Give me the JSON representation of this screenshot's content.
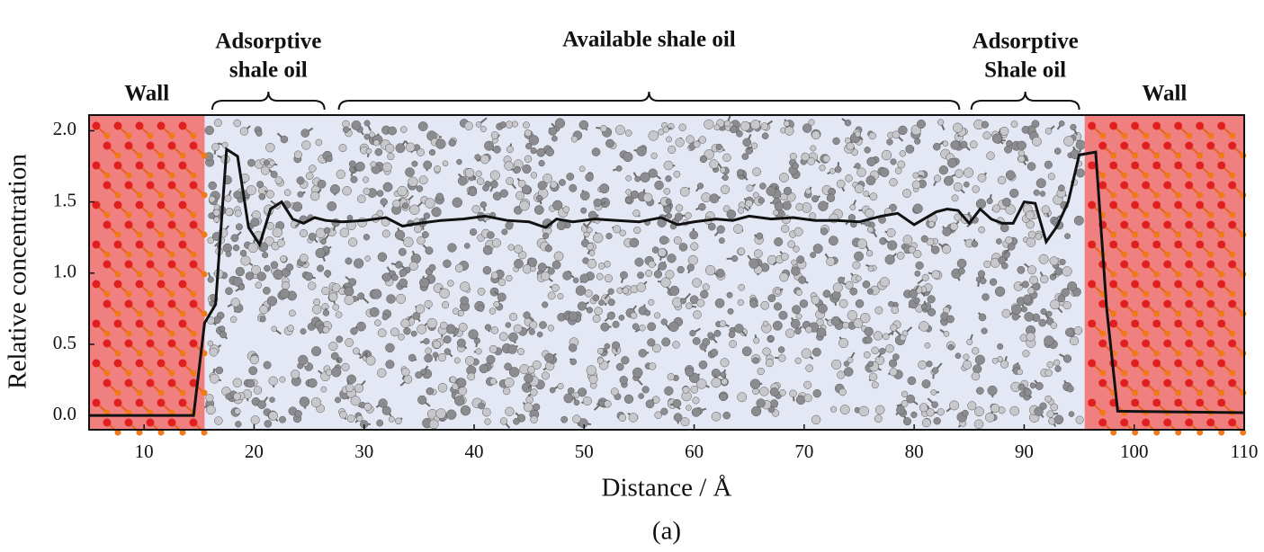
{
  "chart_data": {
    "type": "line",
    "xlabel": "Distance / Å",
    "ylabel": "Relative concentration",
    "caption": "(a)",
    "xlim": [
      5,
      110
    ],
    "ylim": [
      -0.1,
      2.11
    ],
    "xticks": [
      10,
      20,
      30,
      40,
      50,
      60,
      70,
      80,
      90,
      100,
      110
    ],
    "yticks": [
      {
        "value": 0,
        "label": "0.0"
      },
      {
        "value": 0.5,
        "label": "0.5"
      },
      {
        "value": 1,
        "label": "1.0"
      },
      {
        "value": 1.5,
        "label": "1.5"
      },
      {
        "value": 2,
        "label": "2.0"
      }
    ],
    "shaded_regions": [
      {
        "label": "Wall",
        "x": [
          5,
          15.5
        ],
        "color": "#f08080"
      },
      {
        "label": "Wall",
        "x": [
          95.5,
          110
        ],
        "color": "#f08080"
      }
    ],
    "background_color": "#e3e8f4",
    "braces": [
      {
        "lines": [
          "Adsorptive",
          "shale oil"
        ],
        "x": [
          16.2,
          26.4
        ]
      },
      {
        "lines": [
          "Available shale oil"
        ],
        "x": [
          27.7,
          84.1
        ]
      },
      {
        "lines": [
          "Adsorptive",
          "Shale oil"
        ],
        "x": [
          85.2,
          95.0
        ]
      }
    ],
    "series": [
      {
        "color": "#111111",
        "x": [
          5,
          14.5,
          15.5,
          16.5,
          17.5,
          18.5,
          19.5,
          20.5,
          21.5,
          22.5,
          23.5,
          24.5,
          25.5,
          26.5,
          28,
          30,
          32,
          33.5,
          35,
          37,
          39,
          41,
          43,
          45,
          46.5,
          47.5,
          49,
          51,
          53,
          55,
          57,
          58.5,
          60,
          62,
          63.5,
          65,
          67,
          69,
          71,
          73,
          75,
          77,
          78.5,
          80,
          82,
          83,
          84,
          85,
          86,
          87,
          88,
          89,
          90,
          91,
          92,
          93,
          94,
          95,
          96.5,
          97.5,
          98.5,
          110
        ],
        "values": [
          0,
          0,
          0.65,
          0.78,
          1.87,
          1.82,
          1.32,
          1.2,
          1.45,
          1.5,
          1.38,
          1.35,
          1.39,
          1.37,
          1.36,
          1.37,
          1.39,
          1.33,
          1.35,
          1.37,
          1.38,
          1.4,
          1.37,
          1.36,
          1.32,
          1.38,
          1.36,
          1.38,
          1.37,
          1.36,
          1.39,
          1.34,
          1.36,
          1.38,
          1.37,
          1.4,
          1.38,
          1.39,
          1.37,
          1.37,
          1.36,
          1.4,
          1.42,
          1.34,
          1.43,
          1.45,
          1.44,
          1.35,
          1.45,
          1.38,
          1.35,
          1.35,
          1.5,
          1.49,
          1.22,
          1.33,
          1.5,
          1.83,
          1.85,
          0.75,
          0.03,
          0.02
        ]
      }
    ]
  }
}
